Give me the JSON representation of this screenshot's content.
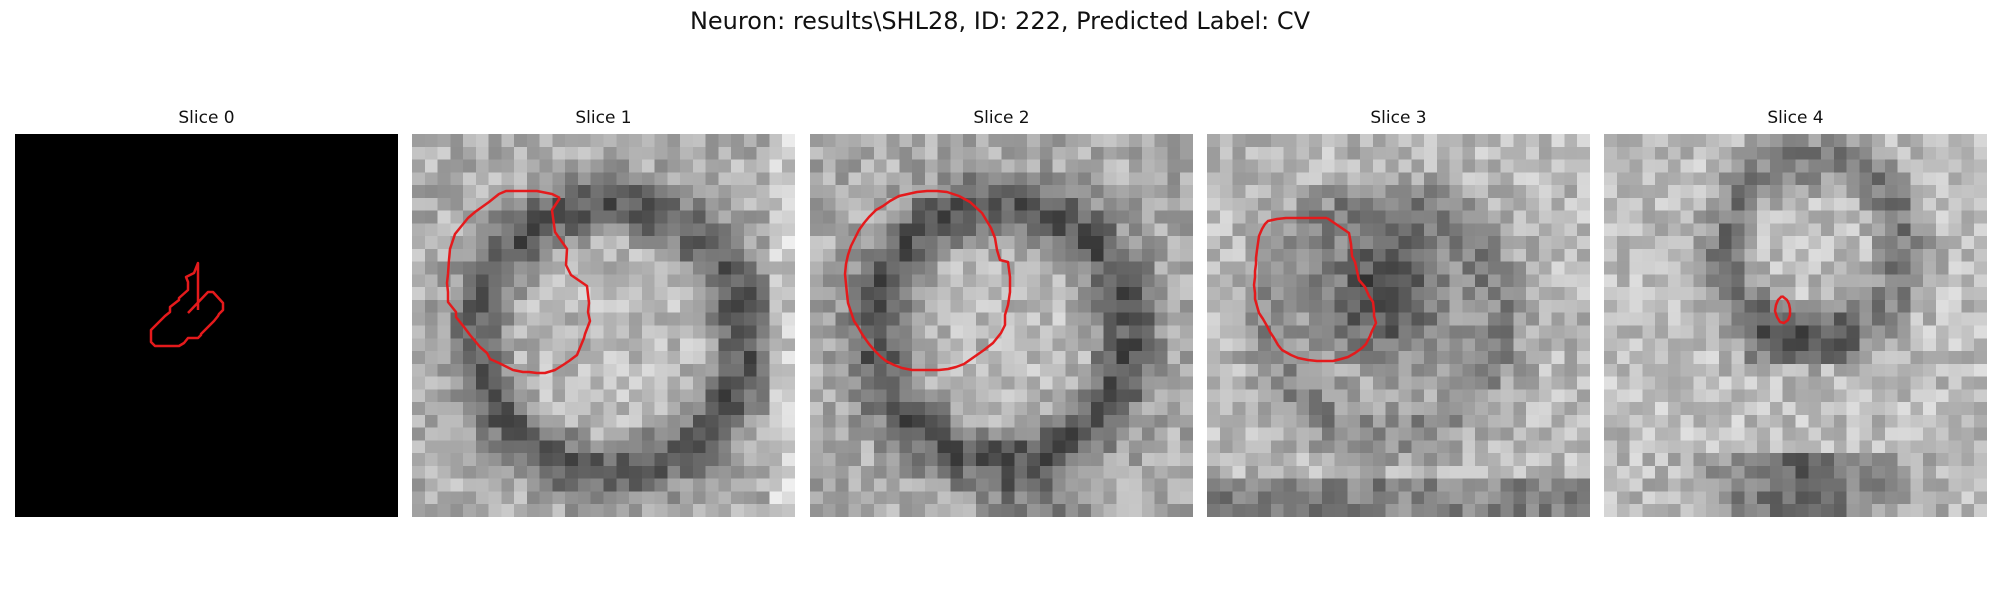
{
  "figure": {
    "title": "Neuron: results\\SHL28, ID: 222, Predicted Label: CV",
    "contour_color": "#e41a1c"
  },
  "slices": [
    {
      "title": "Slice 0"
    },
    {
      "title": "Slice 1"
    },
    {
      "title": "Slice 2"
    },
    {
      "title": "Slice 3"
    },
    {
      "title": "Slice 4"
    }
  ]
}
